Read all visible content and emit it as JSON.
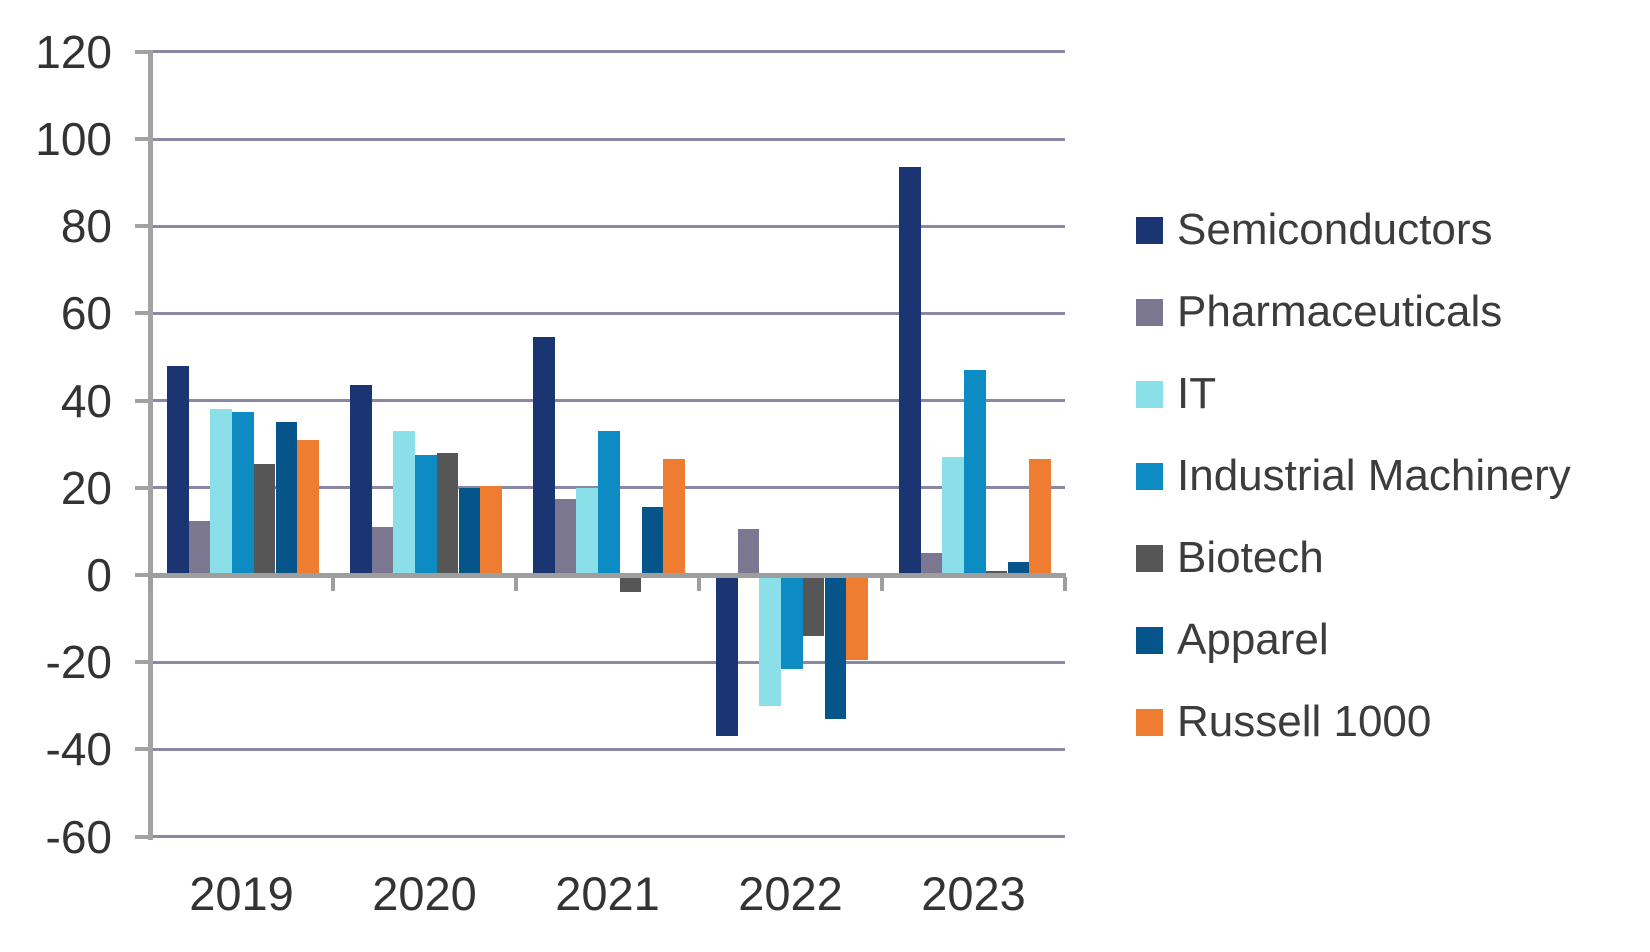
{
  "chart_data": {
    "type": "bar",
    "title": "",
    "categories": [
      "2019",
      "2020",
      "2021",
      "2022",
      "2023"
    ],
    "series": [
      {
        "name": "Semiconductors",
        "color": "#1a3571",
        "values": [
          48,
          43.5,
          54.5,
          -37,
          93.5
        ]
      },
      {
        "name": "Pharmaceuticals",
        "color": "#7b7791",
        "values": [
          12.5,
          11,
          17.5,
          10.5,
          5
        ]
      },
      {
        "name": "IT",
        "color": "#8adfe9",
        "values": [
          38,
          33,
          20,
          -30,
          27
        ]
      },
      {
        "name": "Industrial Machinery",
        "color": "#0d8cc4",
        "values": [
          37.5,
          27.5,
          33,
          -21.5,
          47
        ]
      },
      {
        "name": "Biotech",
        "color": "#565656",
        "values": [
          25.5,
          28,
          -4,
          -14,
          1
        ]
      },
      {
        "name": "Apparel",
        "color": "#05548a",
        "values": [
          35,
          20,
          15.5,
          -33,
          3
        ]
      },
      {
        "name": "Russell 1000",
        "color": "#ee7d31",
        "values": [
          31,
          20.5,
          26.5,
          -19.5,
          26.5
        ]
      }
    ],
    "y_axis": {
      "min": -60,
      "max": 120,
      "step": 20,
      "tick_labels": [
        "120",
        "100",
        "80",
        "60",
        "40",
        "20",
        "0",
        "-20",
        "-40",
        "-60"
      ]
    },
    "x_axis_label": "",
    "y_axis_label": "",
    "grid": true,
    "legend_position": "right"
  },
  "colors": {
    "background": "#ffffff",
    "gridline": "#8b88a3",
    "axis": "#9e9e9e",
    "tick_text": "#333333",
    "legend_text": "#3c3c3c"
  }
}
